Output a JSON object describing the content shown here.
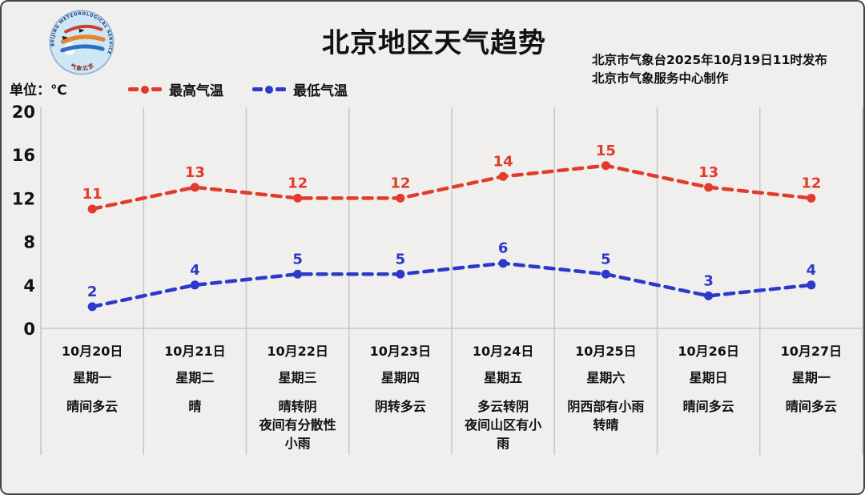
{
  "header": {
    "title": "北京地区天气趋势",
    "issued_line1": "北京市气象台2025年10月19日11时发布",
    "issued_line2": "北京市气象服务中心制作",
    "unit_label": "单位：℃",
    "logo": {
      "icon": "beijing-meteorological-service-logo",
      "arc_text_top": "BEIJING METEOROLOGICAL SERVICE",
      "arc_text_bottom": "气象北京"
    }
  },
  "legend": [
    {
      "label": "最高气温",
      "color": "#e23b2b",
      "marker": "dash-dot-dash"
    },
    {
      "label": "最低气温",
      "color": "#2b3ac8",
      "marker": "dash-dot-dash"
    }
  ],
  "chart_data": {
    "type": "line",
    "title": "北京地区天气趋势",
    "ylabel": "℃",
    "categories": [
      "10月20日",
      "10月21日",
      "10月22日",
      "10月23日",
      "10月24日",
      "10月25日",
      "10月26日",
      "10月27日"
    ],
    "series": [
      {
        "name": "最高气温",
        "color": "#e23b2b",
        "values": [
          11,
          13,
          12,
          12,
          14,
          15,
          13,
          12
        ]
      },
      {
        "name": "最低气温",
        "color": "#2b3ac8",
        "values": [
          2,
          4,
          5,
          5,
          6,
          5,
          3,
          4
        ]
      }
    ],
    "ylim": [
      0,
      20
    ],
    "yticks": [
      0,
      4,
      8,
      12,
      16,
      20
    ],
    "grid": "vertical-column-separators-only",
    "line_style": "dashed-with-point-markers-and-value-labels",
    "legend_position": "top-left"
  },
  "x_axis": {
    "days": [
      {
        "date": "10月20日",
        "weekday": "星期一",
        "weather": "晴间多云"
      },
      {
        "date": "10月21日",
        "weekday": "星期二",
        "weather": "晴"
      },
      {
        "date": "10月22日",
        "weekday": "星期三",
        "weather": "晴转阴\n夜间有分散性\n小雨"
      },
      {
        "date": "10月23日",
        "weekday": "星期四",
        "weather": "阴转多云"
      },
      {
        "date": "10月24日",
        "weekday": "星期五",
        "weather": "多云转阴\n夜间山区有小\n雨"
      },
      {
        "date": "10月25日",
        "weekday": "星期六",
        "weather": "阴西部有小雨\n转晴"
      },
      {
        "date": "10月26日",
        "weekday": "星期日",
        "weather": "晴间多云"
      },
      {
        "date": "10月27日",
        "weekday": "星期一",
        "weather": "晴间多云"
      }
    ]
  },
  "colors": {
    "background": "#f0efed",
    "gridline": "#c8c8c8",
    "text": "#111111",
    "high_series": "#e23b2b",
    "low_series": "#2b3ac8"
  }
}
